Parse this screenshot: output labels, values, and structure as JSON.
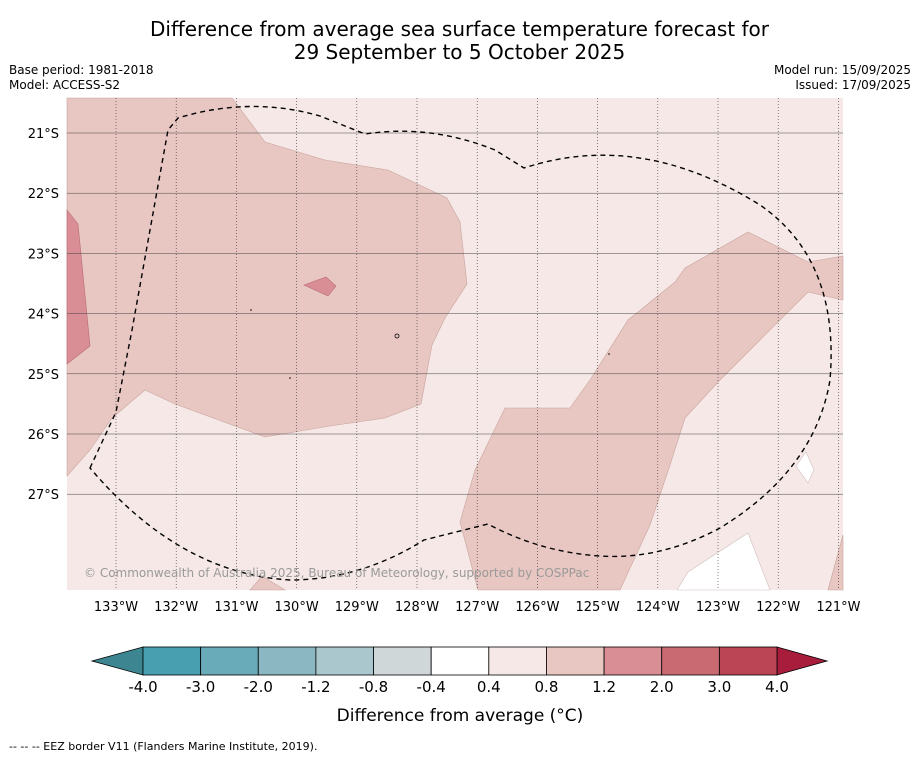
{
  "title_line1": "Difference from average sea surface temperature forecast for",
  "title_line2": "29 September to 5 October 2025",
  "base_period": "Base period: 1981-2018",
  "model": "Model: ACCESS-S2",
  "model_run": "Model run: 15/09/2025",
  "issued": "Issued: 17/09/2025",
  "copyright": "© Commonwealth of Australia 2025, Bureau of Meteorology, supported by COSPPac",
  "footer": "--  --  -- EEZ border V11 (Flanders Marine Institute, 2019).",
  "chart_data": {
    "type": "heatmap",
    "title": "Difference from average sea surface temperature forecast for 29 September to 5 October 2025",
    "x_ticks": [
      "133°W",
      "132°W",
      "131°W",
      "130°W",
      "129°W",
      "128°W",
      "127°W",
      "126°W",
      "125°W",
      "124°W",
      "123°W",
      "122°W",
      "121°W"
    ],
    "y_ticks": [
      "21°S",
      "22°S",
      "23°S",
      "24°S",
      "25°S",
      "26°S",
      "27°S"
    ],
    "x_range": [
      -133.8,
      -120.9
    ],
    "y_range": [
      -28.4,
      -20.4
    ],
    "colorbar": {
      "label": "Difference from average (°C)",
      "ticks": [
        "-4.0",
        "-3.0",
        "-2.0",
        "-1.2",
        "-0.8",
        "-0.4",
        "0.4",
        "0.8",
        "1.2",
        "2.0",
        "3.0",
        "4.0"
      ],
      "colors": [
        "#479fb0",
        "#6aabba",
        "#8bb7c3",
        "#a9c7cc",
        "#cfd7d9",
        "#ffffff",
        "#f5e8e6",
        "#e8c6c1",
        "#d98d95",
        "#c96a73",
        "#bb4455"
      ],
      "under_color": "#3d8590",
      "over_color": "#a81c3c"
    },
    "regions": [
      {
        "range": "0.4 to 0.8",
        "description": "background"
      },
      {
        "range": "0.8 to 1.2",
        "description": "northwest and southeast bands"
      },
      {
        "range": "1.2 to 2.0",
        "description": "small patches west"
      },
      {
        "range": "-0.4 to 0.4",
        "description": "small patches southeast"
      }
    ]
  }
}
